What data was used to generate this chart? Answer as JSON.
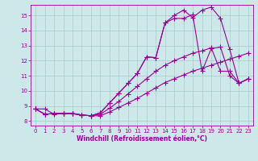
{
  "xlabel": "Windchill (Refroidissement éolien,°C)",
  "bg_color": "#cce8e8",
  "line_color": "#990099",
  "grid_color": "#aacccc",
  "xlim": [
    -0.5,
    23.5
  ],
  "ylim": [
    7.7,
    15.7
  ],
  "xticks": [
    0,
    1,
    2,
    3,
    4,
    5,
    6,
    7,
    8,
    9,
    10,
    11,
    12,
    13,
    14,
    15,
    16,
    17,
    18,
    19,
    20,
    21,
    22,
    23
  ],
  "yticks": [
    8,
    9,
    10,
    11,
    12,
    13,
    14,
    15
  ],
  "series": [
    {
      "x": [
        0,
        1,
        2,
        3,
        4,
        5,
        6,
        7,
        8,
        9,
        10,
        11,
        12,
        13,
        14,
        15,
        16,
        17,
        18,
        19,
        20,
        21,
        22,
        23
      ],
      "y": [
        8.8,
        8.8,
        8.45,
        8.5,
        8.5,
        8.4,
        8.35,
        8.35,
        8.6,
        8.9,
        9.2,
        9.5,
        9.85,
        10.2,
        10.55,
        10.8,
        11.05,
        11.3,
        11.5,
        11.7,
        11.9,
        12.1,
        12.3,
        12.5
      ]
    },
    {
      "x": [
        0,
        1,
        2,
        3,
        4,
        5,
        6,
        7,
        8,
        9,
        10,
        11,
        12,
        13,
        14,
        15,
        16,
        17,
        18,
        19,
        20,
        21,
        22,
        23
      ],
      "y": [
        8.8,
        8.45,
        8.5,
        8.5,
        8.5,
        8.4,
        8.35,
        8.45,
        8.85,
        9.3,
        9.8,
        10.3,
        10.8,
        11.3,
        11.7,
        12.0,
        12.25,
        12.5,
        12.65,
        12.85,
        11.3,
        11.3,
        10.5,
        10.8
      ]
    },
    {
      "x": [
        0,
        1,
        2,
        3,
        4,
        5,
        6,
        7,
        8,
        9,
        10,
        11,
        12,
        13,
        14,
        15,
        16,
        17,
        18,
        19,
        20,
        21,
        22,
        23
      ],
      "y": [
        8.8,
        8.45,
        8.5,
        8.5,
        8.5,
        8.4,
        8.35,
        8.55,
        9.2,
        9.85,
        10.5,
        11.15,
        12.25,
        12.2,
        14.5,
        14.8,
        14.8,
        15.05,
        11.3,
        12.8,
        12.9,
        11.0,
        10.5,
        10.8
      ]
    },
    {
      "x": [
        0,
        1,
        2,
        3,
        4,
        5,
        6,
        7,
        8,
        9,
        10,
        11,
        12,
        13,
        14,
        15,
        16,
        17,
        18,
        19,
        20,
        21,
        22,
        23
      ],
      "y": [
        8.8,
        8.45,
        8.5,
        8.5,
        8.5,
        8.4,
        8.35,
        8.55,
        9.2,
        9.85,
        10.5,
        11.15,
        12.25,
        12.2,
        14.5,
        15.0,
        15.35,
        14.85,
        15.35,
        15.55,
        14.8,
        12.75,
        10.5,
        10.8
      ]
    }
  ],
  "marker": "+",
  "markersize": 4.0,
  "linewidth": 0.8,
  "xlabel_fontsize": 5.5,
  "tick_fontsize": 5
}
